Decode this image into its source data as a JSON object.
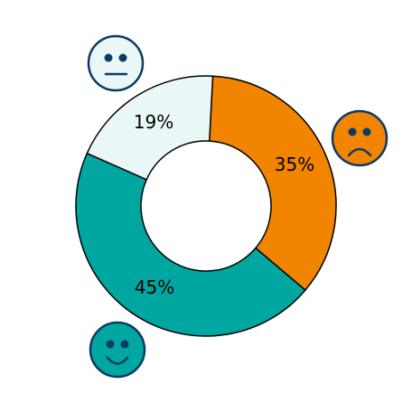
{
  "chart_data": {
    "type": "pie",
    "donut": true,
    "start_angle_deg": 87,
    "direction": "clockwise",
    "slices": [
      {
        "key": "sad",
        "label": "35%",
        "value": 35,
        "color": "#f28500",
        "face": "sad-face-icon"
      },
      {
        "key": "happy",
        "label": "45%",
        "value": 45,
        "color": "#00a6a0",
        "face": "happy-face-icon"
      },
      {
        "key": "neutral",
        "label": "19%",
        "value": 19,
        "color": "#eaf7f7",
        "face": "neutral-face-icon"
      }
    ],
    "legend": "none"
  },
  "colors": {
    "edge": "#000000",
    "icon_outline": "#0b3a66"
  }
}
